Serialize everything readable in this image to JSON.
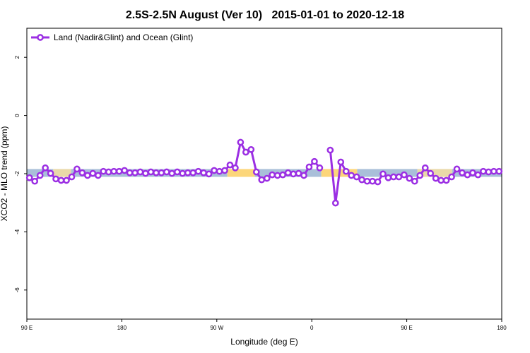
{
  "chart_data": {
    "type": "line",
    "title": "2.5S-2.5N August (Ver 10)   2015-01-01 to 2020-12-18",
    "xlabel": "Longitude (deg E)",
    "ylabel": "XCO2 - MLO trend (ppm)",
    "xlim": [
      90,
      540
    ],
    "ylim": [
      -7,
      3
    ],
    "xticks": [
      {
        "value": 90,
        "label": "90 E"
      },
      {
        "value": 180,
        "label": "180"
      },
      {
        "value": 270,
        "label": "90 W"
      },
      {
        "value": 360,
        "label": "0"
      },
      {
        "value": 450,
        "label": "90 E"
      },
      {
        "value": 540,
        "label": "180"
      }
    ],
    "yticks": [
      2,
      0,
      -2,
      -4,
      -6
    ],
    "legend": "top-left",
    "shading_ylim": [
      -2.11,
      -1.84
    ],
    "shading": [
      {
        "range": [
          90,
          115
        ],
        "color": "#a9bfd9"
      },
      {
        "range": [
          115,
          132
        ],
        "color": "#e9d9a8"
      },
      {
        "range": [
          132,
          280
        ],
        "color": "#a9bfd9"
      },
      {
        "range": [
          280,
          306
        ],
        "color": "#fcd67a"
      },
      {
        "range": [
          306,
          369
        ],
        "color": "#a9bfd9"
      },
      {
        "range": [
          369,
          403
        ],
        "color": "#fcd67a"
      },
      {
        "range": [
          403,
          460
        ],
        "color": "#a9bfd9"
      },
      {
        "range": [
          460,
          493
        ],
        "color": "#e9d9a8"
      },
      {
        "range": [
          493,
          540
        ],
        "color": "#a9bfd9"
      }
    ],
    "x": [
      92.5,
      97.5,
      102.5,
      107.5,
      112.5,
      117.5,
      122.5,
      127.5,
      132.5,
      137.5,
      142.5,
      147.5,
      152.5,
      157.5,
      162.5,
      167.5,
      172.5,
      177.5,
      182.5,
      187.5,
      192.5,
      197.5,
      202.5,
      207.5,
      212.5,
      217.5,
      222.5,
      227.5,
      232.5,
      237.5,
      242.5,
      247.5,
      252.5,
      257.5,
      262.5,
      267.5,
      272.5,
      277.5,
      282.5,
      287.5,
      292.5,
      297.5,
      302.5,
      307.5,
      312.5,
      317.5,
      322.5,
      327.5,
      332.5,
      337.5,
      342.5,
      347.5,
      352.5,
      357.5,
      362.5,
      367.5,
      372.5,
      377.5,
      382.5,
      387.5,
      392.5,
      397.5,
      402.5,
      407.5,
      412.5,
      417.5,
      422.5,
      427.5,
      432.5,
      437.5,
      442.5,
      447.5,
      452.5,
      457.5,
      462.5,
      467.5,
      472.5,
      477.5,
      482.5,
      487.5,
      492.5,
      497.5,
      502.5,
      507.5,
      512.5,
      517.5,
      522.5,
      527.5,
      532.5,
      537.5
    ],
    "series": [
      {
        "name": "Land (Nadir&Glint) and Ocean (Glint)",
        "color": "#9b2fe3",
        "values": [
          -2.14,
          -2.26,
          -2.06,
          -1.8,
          -1.99,
          -2.18,
          -2.23,
          -2.23,
          -2.11,
          -1.84,
          -1.97,
          -2.06,
          -1.99,
          -2.06,
          -1.92,
          -1.94,
          -1.92,
          -1.92,
          -1.89,
          -1.97,
          -1.97,
          -1.94,
          -1.99,
          -1.94,
          -1.97,
          -1.97,
          -1.94,
          -1.99,
          -1.94,
          -1.99,
          -1.97,
          -1.97,
          -1.92,
          -1.97,
          -2.01,
          -1.89,
          -1.92,
          -1.89,
          -1.7,
          -1.8,
          -0.92,
          -1.26,
          -1.17,
          -1.94,
          -2.21,
          -2.16,
          -2.04,
          -2.06,
          -2.04,
          -1.97,
          -2.01,
          -1.99,
          -2.06,
          -1.77,
          -1.58,
          -1.8,
          null,
          -1.19,
          -3.01,
          -1.6,
          -1.92,
          -2.06,
          -2.11,
          -2.21,
          -2.26,
          -2.26,
          -2.28,
          -2.01,
          -2.14,
          -2.11,
          -2.11,
          -2.04,
          -2.16,
          -2.26,
          -2.06,
          -1.8,
          -1.99,
          -2.16,
          -2.23,
          -2.23,
          -2.11,
          -1.84,
          -1.97,
          -2.04,
          -1.97,
          -2.04,
          -1.92,
          -1.94,
          -1.92,
          -1.92
        ]
      }
    ]
  }
}
